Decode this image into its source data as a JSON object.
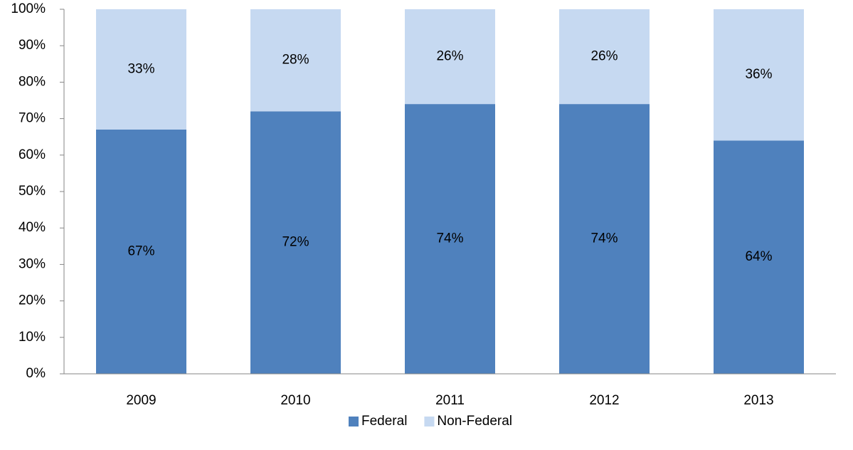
{
  "chart_data": {
    "type": "bar",
    "stacked": true,
    "categories": [
      "2009",
      "2010",
      "2011",
      "2012",
      "2013"
    ],
    "series": [
      {
        "name": "Federal",
        "color": "#4f81bd",
        "values": [
          67,
          72,
          74,
          74,
          64
        ],
        "value_labels": [
          "67%",
          "72%",
          "74%",
          "74%",
          "64%"
        ]
      },
      {
        "name": "Non-Federal",
        "color": "#c6d9f1",
        "values": [
          33,
          28,
          26,
          26,
          36
        ],
        "value_labels": [
          "33%",
          "28%",
          "26%",
          "26%",
          "36%"
        ]
      }
    ],
    "ylim": [
      0,
      100
    ],
    "yticks": [
      {
        "value": 0,
        "label": "0%"
      },
      {
        "value": 10,
        "label": "10%"
      },
      {
        "value": 20,
        "label": "20%"
      },
      {
        "value": 30,
        "label": "30%"
      },
      {
        "value": 40,
        "label": "40%"
      },
      {
        "value": 50,
        "label": "50%"
      },
      {
        "value": 60,
        "label": "60%"
      },
      {
        "value": 70,
        "label": "70%"
      },
      {
        "value": 80,
        "label": "80%"
      },
      {
        "value": 90,
        "label": "90%"
      },
      {
        "value": 100,
        "label": "100%"
      }
    ],
    "grid": false,
    "legend": "bottom"
  }
}
